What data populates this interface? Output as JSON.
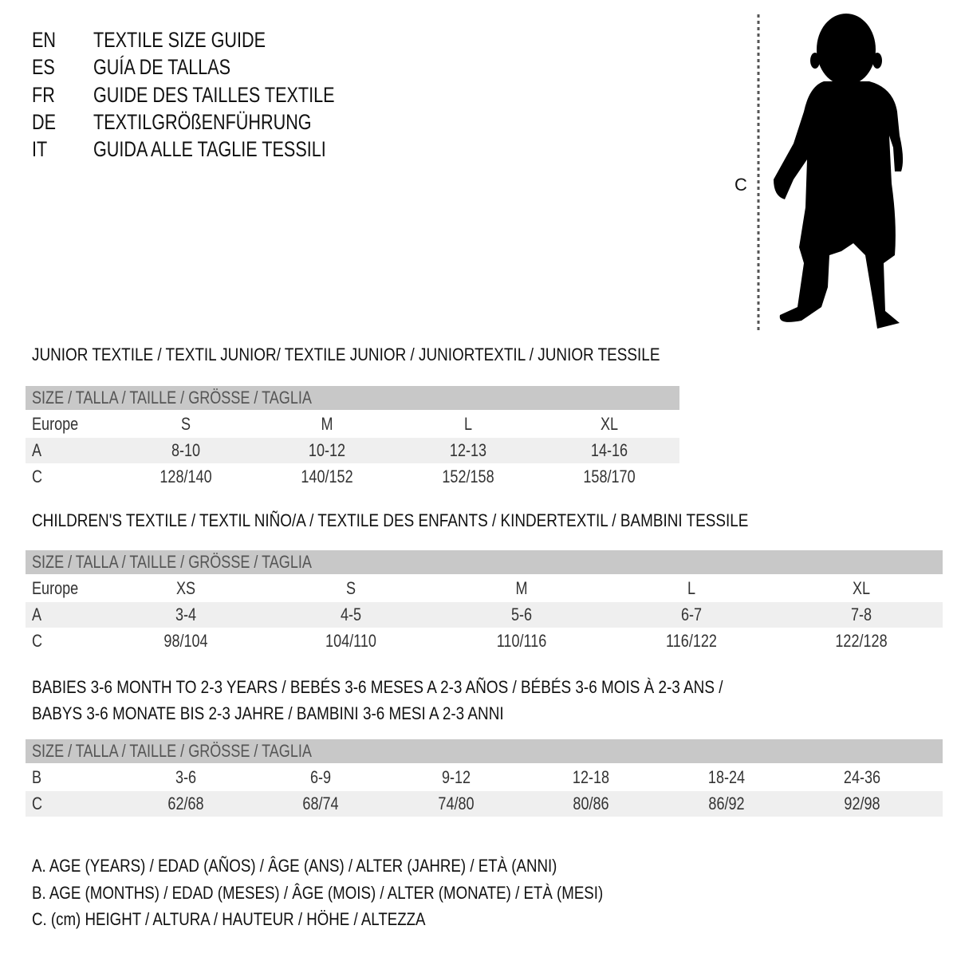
{
  "header": {
    "lines": [
      {
        "lang": "EN",
        "text": "TEXTILE SIZE GUIDE"
      },
      {
        "lang": "ES",
        "text": "GUÍA DE TALLAS"
      },
      {
        "lang": "FR",
        "text": "GUIDE DES TAILLES TEXTILE"
      },
      {
        "lang": "DE",
        "text": "TEXTILGRÖßENFÜHRUNG"
      },
      {
        "lang": "IT",
        "text": "GUIDA ALLE TAGLIE TESSILI"
      }
    ]
  },
  "figure": {
    "label": "C",
    "icon": "child-silhouette-icon"
  },
  "colors": {
    "header_row": "#c8c8c8",
    "shaded_row": "#efefef",
    "text": "#111111"
  },
  "sections": [
    {
      "title": [
        "JUNIOR TEXTILE / TEXTIL JUNIOR/ TEXTILE JUNIOR / JUNIORTEXTIL / JUNIOR TESSILE"
      ],
      "size_header": "SIZE / TALLA / TAILLE / GRÖSSE / TAGLIA",
      "rows": [
        {
          "label": "Europe",
          "values": [
            "S",
            "M",
            "L",
            "XL"
          ]
        },
        {
          "label": "A",
          "values": [
            "8-10",
            "10-12",
            "12-13",
            "14-16"
          ]
        },
        {
          "label": "C",
          "values": [
            "128/140",
            "140/152",
            "152/158",
            "158/170"
          ]
        }
      ]
    },
    {
      "title": [
        "CHILDREN'S TEXTILE / TEXTIL NIÑO/A / TEXTILE DES ENFANTS / KINDERTEXTIL / BAMBINI TESSILE"
      ],
      "size_header": "SIZE / TALLA / TAILLE / GRÖSSE / TAGLIA",
      "rows": [
        {
          "label": "Europe",
          "values": [
            "XS",
            "S",
            "M",
            "L",
            "XL"
          ]
        },
        {
          "label": "A",
          "values": [
            "3-4",
            "4-5",
            "5-6",
            "6-7",
            "7-8"
          ]
        },
        {
          "label": "C",
          "values": [
            "98/104",
            "104/110",
            "110/116",
            "116/122",
            "122/128"
          ]
        }
      ]
    },
    {
      "title": [
        "BABIES 3-6 MONTH TO 2-3 YEARS / BEBÉS 3-6 MESES A 2-3 AÑOS / BÉBÉS 3-6 MOIS À 2-3 ANS /",
        "BABYS 3-6 MONATE BIS 2-3 JAHRE / BAMBINI 3-6 MESI A 2-3 ANNI"
      ],
      "size_header": "SIZE / TALLA / TAILLE / GRÖSSE / TAGLIA",
      "rows": [
        {
          "label": "B",
          "values": [
            "3-6",
            "6-9",
            "9-12",
            "12-18",
            "18-24",
            "24-36"
          ]
        },
        {
          "label": "C",
          "values": [
            "62/68",
            "68/74",
            "74/80",
            "80/86",
            "86/92",
            "92/98"
          ]
        }
      ]
    }
  ],
  "legend": [
    "A. AGE (YEARS) / EDAD (AÑOS) / ÂGE (ANS) / ALTER (JAHRE) / ETÀ (ANNI)",
    "B. AGE (MONTHS) / EDAD (MESES) / ÂGE (MOIS) / ALTER (MONATE) / ETÀ (MESI)",
    "C. (cm) HEIGHT / ALTURA / HAUTEUR / HÖHE / ALTEZZA"
  ]
}
